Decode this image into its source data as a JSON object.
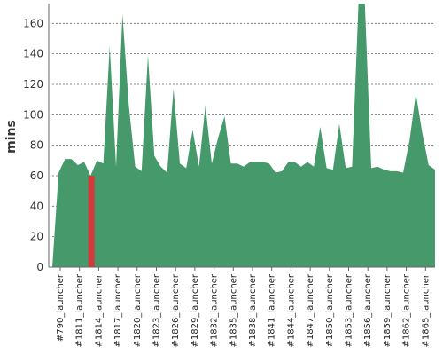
{
  "chart_data": {
    "type": "area",
    "title": "",
    "xlabel": "",
    "ylabel": "mins",
    "ylim": [
      0,
      173
    ],
    "yticks": [
      0,
      20,
      40,
      60,
      80,
      100,
      120,
      140,
      160
    ],
    "grid": true,
    "legend": "none",
    "x_ticklabels": [
      "#790_launcher",
      "#1811_launcher",
      "#1814_launcher",
      "#1817_launcher",
      "#1820_launcher",
      "#1823_launcher",
      "#1826_launcher",
      "#1829_launcher",
      "#1832_launcher",
      "#1835_launcher",
      "#1838_launcher",
      "#1841_launcher",
      "#1844_launcher",
      "#1847_launcher",
      "#1850_launcher",
      "#1853_launcher",
      "#1856_launcher",
      "#1859_launcher",
      "#1862_launcher",
      "#1865_launcher"
    ],
    "colors": {
      "area": "#45996a",
      "highlight": "#d03b3b",
      "grid": "#666666",
      "axis": "#666666"
    },
    "highlight_index": 6,
    "values": [
      0,
      62,
      71,
      71,
      67,
      69,
      60,
      70,
      68,
      145,
      66,
      166,
      106,
      66,
      63,
      139,
      73,
      66,
      62,
      117,
      68,
      65,
      90,
      66,
      106,
      68,
      85,
      99,
      68,
      68,
      66,
      69,
      69,
      69,
      68,
      62,
      63,
      69,
      69,
      66,
      69,
      66,
      92,
      65,
      64,
      94,
      65,
      66,
      178,
      177,
      65,
      66,
      64,
      63,
      63,
      62,
      83,
      114,
      88,
      67,
      64
    ]
  }
}
